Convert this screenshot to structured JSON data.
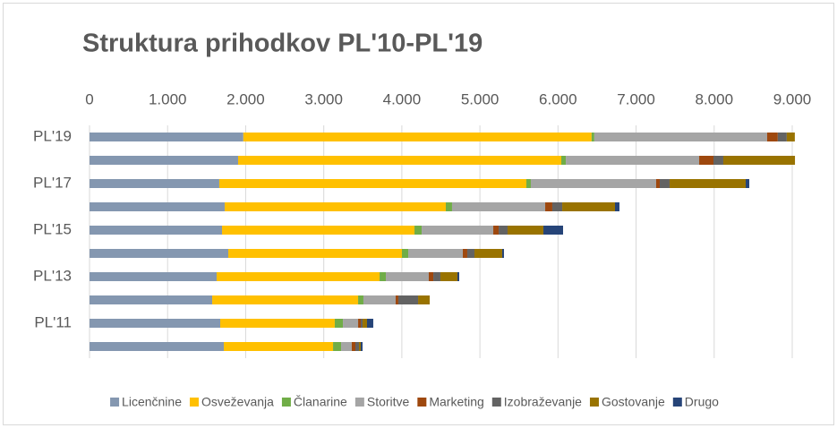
{
  "chart_data": {
    "type": "stacked_barh",
    "title": "Struktura prihodkov PL'10-PL'19",
    "categories": [
      "PL'19",
      null,
      "PL'17",
      null,
      "PL'15",
      null,
      "PL'13",
      null,
      "PL'11",
      null
    ],
    "series": [
      {
        "name": "Licenčnine",
        "color": "#8497b0",
        "values": [
          1970,
          1903,
          1662,
          1731,
          1697,
          1777,
          1628,
          1571,
          1674,
          1720
        ]
      },
      {
        "name": "Osveževanja",
        "color": "#ffc000",
        "values": [
          4460,
          4139,
          3933,
          2832,
          2465,
          2224,
          2087,
          1869,
          1467,
          1399
        ]
      },
      {
        "name": "Članarine",
        "color": "#70ad47",
        "values": [
          35,
          58,
          57,
          80,
          92,
          81,
          80,
          68,
          104,
          103
        ]
      },
      {
        "name": "Storitve",
        "color": "#a5a5a5",
        "values": [
          2213,
          1708,
          1605,
          1193,
          917,
          699,
          550,
          413,
          195,
          137
        ]
      },
      {
        "name": "Marketing",
        "color": "#9e480e",
        "values": [
          137,
          183,
          46,
          91,
          69,
          57,
          58,
          34,
          34,
          46
        ]
      },
      {
        "name": "Izobraževanje",
        "color": "#636363",
        "values": [
          115,
          126,
          126,
          127,
          114,
          92,
          91,
          253,
          23,
          46
        ]
      },
      {
        "name": "Gostovanje",
        "color": "#997300",
        "values": [
          103,
          918,
          975,
          676,
          459,
          355,
          218,
          149,
          57,
          23
        ]
      },
      {
        "name": "Drugo",
        "color": "#264478",
        "values": [
          0,
          0,
          46,
          57,
          252,
          23,
          23,
          0,
          80,
          23
        ]
      }
    ],
    "xlim": [
      0,
      9000
    ],
    "xticks": [
      0,
      {
        "value": 1000,
        "label": "1.000"
      },
      {
        "value": 2000,
        "label": "2.000"
      },
      {
        "value": 3000,
        "label": "3.000"
      },
      {
        "value": 4000,
        "label": "4.000"
      },
      {
        "value": 5000,
        "label": "5.000"
      },
      {
        "value": 6000,
        "label": "6.000"
      },
      {
        "value": 7000,
        "label": "7.000"
      },
      {
        "value": 8000,
        "label": "8.000"
      },
      {
        "value": 9000,
        "label": "9.000"
      }
    ],
    "grid": true,
    "legend": "bottom"
  }
}
